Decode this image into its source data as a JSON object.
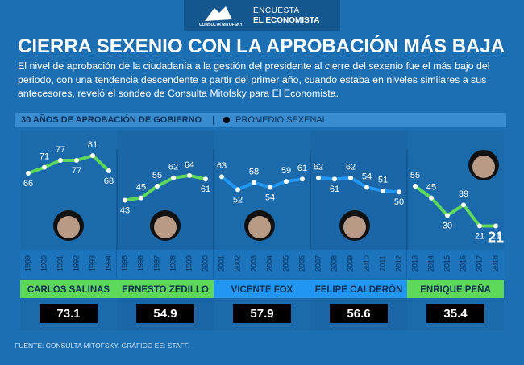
{
  "header": {
    "logo": "CONSULTA MITOFSKY",
    "brand_1": "ENCUESTA",
    "brand_2": "EL ECONOMISTA",
    "title": "CIERRA SEXENIO CON LA APROBACIÓN MÁS BAJA",
    "subtitle": "El nivel de aprobación de la ciudadanía a la gestión del presidente al cierre del sexenio fue el más bajo del periodo, con una tendencia descendente a partir del primer año, cuando estaba en niveles similares a sus antecesores, reveló el sondeo de Consulta Mitofsky para El Economista.",
    "section": "30 AÑOS DE APROBACIÓN DE GOBIERNO",
    "legend": "PROMEDIO SEXENAL",
    "source": "FUENTE: CONSULTA MITOFSKY. GRÁFICO EE: STAFF."
  },
  "chart_data": [
    {
      "type": "line",
      "name": "CARLOS SALINAS",
      "color": "#5ed85a",
      "categories": [
        "1989",
        "1990",
        "1991",
        "1992",
        "1993",
        "1994"
      ],
      "values": [
        66,
        71,
        77,
        77,
        81,
        68
      ],
      "average": 73.1,
      "ylim": [
        20,
        90
      ]
    },
    {
      "type": "line",
      "name": "ERNESTO ZEDILLO",
      "color": "#5ed85a",
      "categories": [
        "1995",
        "1996",
        "1997",
        "1998",
        "1999",
        "2000"
      ],
      "values": [
        43,
        45,
        55,
        62,
        64,
        61
      ],
      "average": 54.9,
      "ylim": [
        20,
        90
      ]
    },
    {
      "type": "line",
      "name": "VICENTE FOX",
      "color": "#2196f3",
      "categories": [
        "2001",
        "2002",
        "2003",
        "2004",
        "2005",
        "2006"
      ],
      "values": [
        63,
        52,
        58,
        54,
        59,
        61
      ],
      "average": 57.9,
      "ylim": [
        20,
        90
      ]
    },
    {
      "type": "line",
      "name": "FELIPE CALDERÓN",
      "color": "#2196f3",
      "categories": [
        "2007",
        "2008",
        "2009",
        "2010",
        "2011",
        "2012"
      ],
      "values": [
        62,
        61,
        62,
        54,
        51,
        50
      ],
      "average": 56.6,
      "ylim": [
        20,
        90
      ]
    },
    {
      "type": "line",
      "name": "ENRIQUE PEÑA",
      "color": "#5ed85a",
      "categories": [
        "2013",
        "2014",
        "2015",
        "2016",
        "2017",
        "2018"
      ],
      "values": [
        55,
        45,
        30,
        39,
        21,
        21
      ],
      "average": 35.4,
      "ylim": [
        20,
        90
      ],
      "highlight": 21
    }
  ]
}
